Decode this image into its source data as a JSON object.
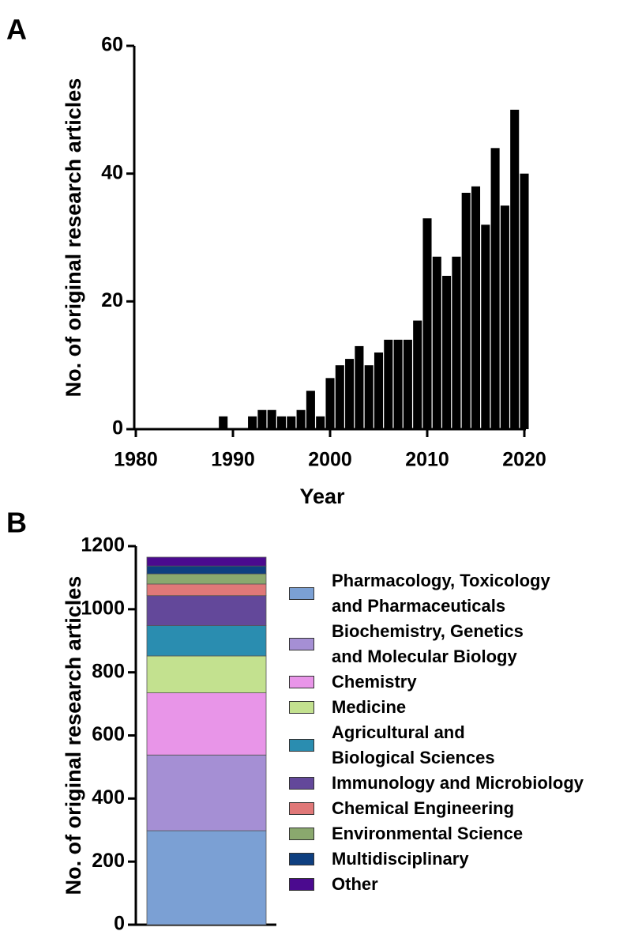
{
  "chart_data": [
    {
      "type": "bar",
      "panel_label": "A",
      "x": [
        1989,
        1990,
        1991,
        1992,
        1993,
        1994,
        1995,
        1996,
        1997,
        1998,
        1999,
        2000,
        2001,
        2002,
        2003,
        2004,
        2005,
        2006,
        2007,
        2008,
        2009,
        2010,
        2011,
        2012,
        2013,
        2014,
        2015,
        2016,
        2017,
        2018,
        2019,
        2020
      ],
      "values": [
        2,
        0,
        0,
        2,
        3,
        3,
        2,
        2,
        3,
        6,
        2,
        8,
        10,
        11,
        13,
        10,
        12,
        14,
        14,
        14,
        17,
        33,
        27,
        24,
        27,
        37,
        38,
        32,
        44,
        35,
        50,
        40
      ],
      "color": "#000000",
      "xlim": [
        1980,
        2020
      ],
      "xticks": [
        1980,
        1990,
        2000,
        2010,
        2020
      ],
      "ylim": [
        0,
        60
      ],
      "yticks": [
        0,
        20,
        40,
        60
      ],
      "x_label": "Year",
      "y_label": "No. of original research articles"
    },
    {
      "type": "stacked_bar",
      "panel_label": "B",
      "series": [
        {
          "name": "Pharmacology, Toxicology\nand Pharmaceuticals",
          "color": "#7ba0d4",
          "values": [
            298
          ]
        },
        {
          "name": "Biochemistry, Genetics\nand Molecular Biology",
          "color": "#a58fd4",
          "values": [
            240
          ]
        },
        {
          "name": "Chemistry",
          "color": "#e895e8",
          "values": [
            197
          ]
        },
        {
          "name": "Medicine",
          "color": "#c3e18f",
          "values": [
            117
          ]
        },
        {
          "name": "Agricultural and\nBiological Sciences",
          "color": "#2a8db0",
          "values": [
            96
          ]
        },
        {
          "name": "Immunology and Microbiology",
          "color": "#63489a",
          "values": [
            95
          ]
        },
        {
          "name": "Chemical Engineering",
          "color": "#e07878",
          "values": [
            37
          ]
        },
        {
          "name": "Environmental Science",
          "color": "#8aa86e",
          "values": [
            32
          ]
        },
        {
          "name": "Multidisciplinary",
          "color": "#0e3f80",
          "values": [
            25
          ]
        },
        {
          "name": "Other",
          "color": "#4b0a8f",
          "values": [
            28
          ]
        }
      ],
      "ylim": [
        0,
        1200
      ],
      "yticks": [
        0,
        200,
        400,
        600,
        800,
        1000,
        1200
      ],
      "y_label": "No. of original research articles"
    }
  ]
}
